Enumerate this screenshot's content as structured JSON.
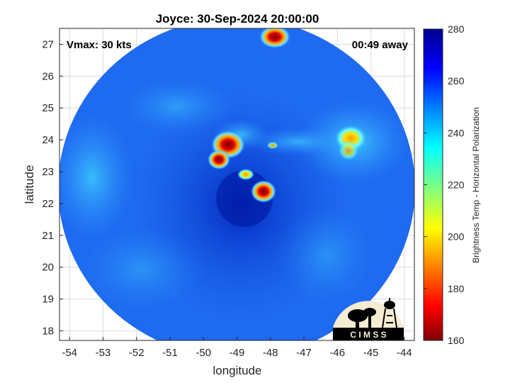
{
  "title": "Joyce: 30-Sep-2024 20:00:00",
  "vmax_text": "Vmax: 30 kts",
  "away_text": "00:49 away",
  "xlabel": "longitude",
  "ylabel": "latitude",
  "colorbar_label": "Brightness Temp - Horizontal Polarization",
  "logo_text": "C I M S S",
  "x_ticks": [
    "-54",
    "-53",
    "-52",
    "-51",
    "-50",
    "-49",
    "-48",
    "-47",
    "-46",
    "-45",
    "-44"
  ],
  "y_ticks": [
    "27",
    "26",
    "25",
    "24",
    "23",
    "22",
    "21",
    "20",
    "19",
    "18"
  ],
  "cb_ticks": [
    "280",
    "260",
    "240",
    "220",
    "200",
    "180",
    "160"
  ],
  "chart_data": {
    "type": "heatmap",
    "title": "Joyce: 30-Sep-2024 20:00:00",
    "xlabel": "longitude",
    "ylabel": "latitude",
    "xlim": [
      -54.3,
      -43.7
    ],
    "ylim": [
      17.7,
      27.5
    ],
    "colorbar": {
      "label": "Brightness Temp - Horizontal Polarization",
      "range": [
        160,
        280
      ],
      "colormap": "jet"
    },
    "background_value": 255,
    "features": [
      {
        "lon": -49.1,
        "lat": 23.9,
        "min_value": 175
      },
      {
        "lon": -49.6,
        "lat": 23.4,
        "min_value": 180
      },
      {
        "lon": -48.1,
        "lat": 22.3,
        "min_value": 185
      },
      {
        "lon": -47.7,
        "lat": 27.3,
        "min_value": 170
      },
      {
        "lon": -45.4,
        "lat": 24.1,
        "min_value": 200
      },
      {
        "lon": -48.8,
        "lat": 22.9,
        "min_value": 210
      }
    ],
    "grid": true
  }
}
